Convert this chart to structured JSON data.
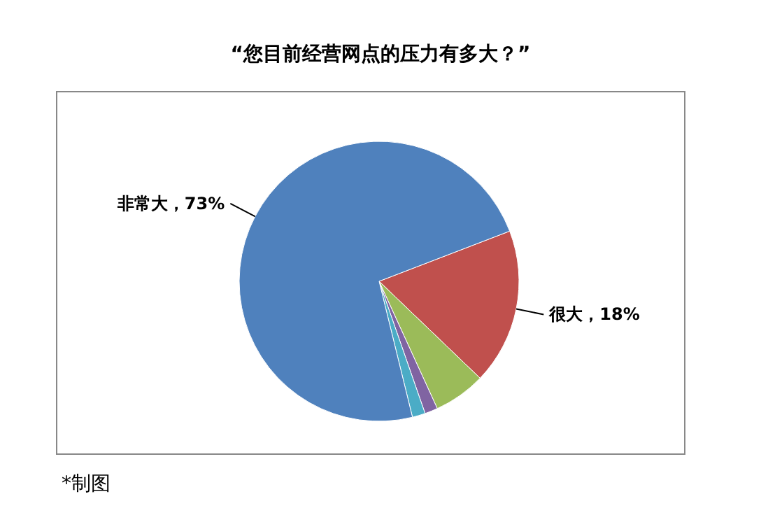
{
  "chart_data": {
    "type": "pie",
    "title": "“您目前经营网点的压力有多大？”",
    "categories": [
      "很大",
      null,
      null,
      null,
      "非常大"
    ],
    "values": [
      18,
      6,
      1.5,
      1.5,
      73
    ],
    "value_labels": [
      "18%",
      null,
      null,
      null,
      "73%"
    ],
    "colors": [
      "#c0504d",
      "#9bbb59",
      "#8064a2",
      "#4bacc6",
      "#4f81bd"
    ],
    "annotations": [
      "*制图"
    ]
  }
}
